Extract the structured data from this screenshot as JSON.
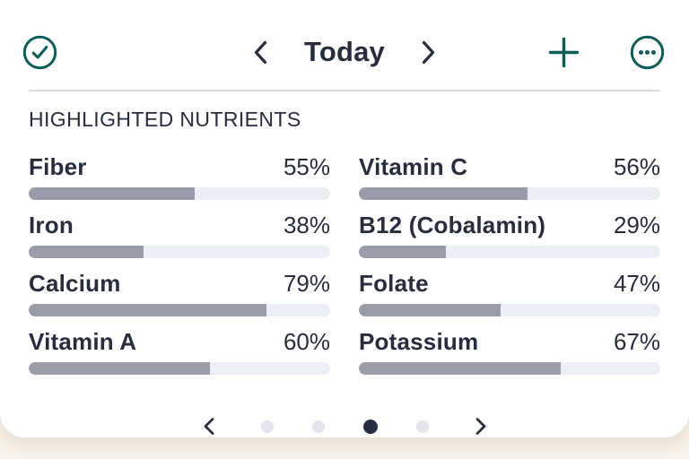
{
  "colors": {
    "accent": "#0e5c56",
    "ink": "#272d3e",
    "bar_fill": "#9a9ca9",
    "bar_track": "#edeff6",
    "divider": "#d8dade",
    "dot_inactive": "#e3e4ed",
    "page_bg": "#f8f3ea",
    "card_bg": "#ffffff"
  },
  "header": {
    "date_label": "Today"
  },
  "section": {
    "title": "HIGHLIGHTED NUTRIENTS"
  },
  "nutrients": [
    {
      "name": "Fiber",
      "percent": 55,
      "percent_label": "55%"
    },
    {
      "name": "Vitamin C",
      "percent": 56,
      "percent_label": "56%"
    },
    {
      "name": "Iron",
      "percent": 38,
      "percent_label": "38%"
    },
    {
      "name": "B12 (Cobalamin)",
      "percent": 29,
      "percent_label": "29%"
    },
    {
      "name": "Calcium",
      "percent": 79,
      "percent_label": "79%"
    },
    {
      "name": "Folate",
      "percent": 47,
      "percent_label": "47%"
    },
    {
      "name": "Vitamin A",
      "percent": 60,
      "percent_label": "60%"
    },
    {
      "name": "Potassium",
      "percent": 67,
      "percent_label": "67%"
    }
  ],
  "pagination": {
    "count": 4,
    "active_index": 2
  }
}
